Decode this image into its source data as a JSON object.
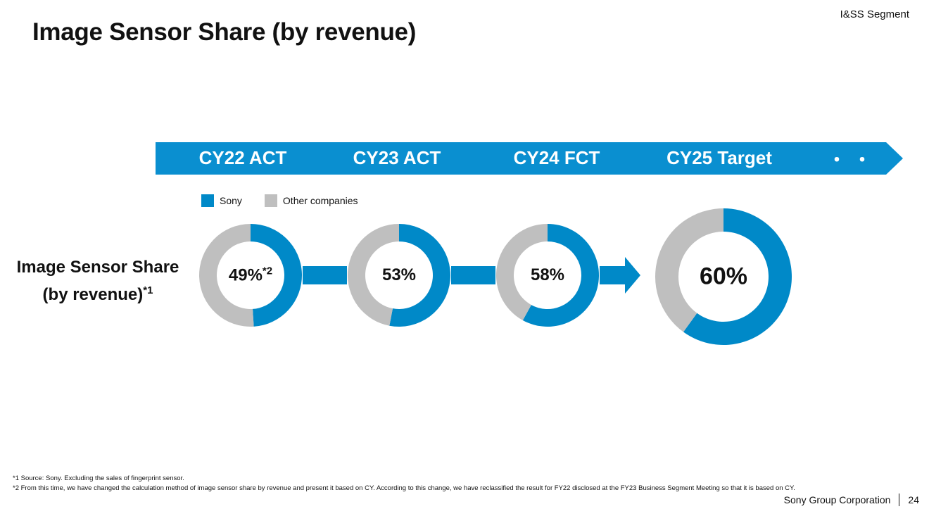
{
  "header": {
    "segment": "I&SS Segment",
    "title": "Image Sensor Share (by revenue)"
  },
  "timeline": {
    "labels": [
      "CY22 ACT",
      "CY23 ACT",
      "CY24 FCT",
      "CY25 Target"
    ],
    "trailing": "・・"
  },
  "colors": {
    "sony": "#0089c8",
    "other": "#bfbfbf",
    "banner": "#0a8fd0"
  },
  "chart_data": {
    "type": "pie",
    "title": "Image Sensor Share (by revenue)",
    "legend": [
      "Sony",
      "Other companies"
    ],
    "row_label": {
      "line1": "Image Sensor Share",
      "line2": "(by revenue)",
      "note": "*1"
    },
    "categories": [
      "CY22 ACT",
      "CY23 ACT",
      "CY24 FCT",
      "CY25 Target"
    ],
    "series": [
      {
        "name": "Sony",
        "values": [
          49,
          53,
          58,
          60
        ]
      },
      {
        "name": "Other companies",
        "values": [
          51,
          47,
          42,
          40
        ]
      }
    ],
    "labels": [
      "49%",
      "53%",
      "58%",
      "60%"
    ],
    "label_notes": [
      "*2",
      "",
      "",
      ""
    ]
  },
  "footnotes": [
    "*1  Source: Sony. Excluding the sales of fingerprint sensor.",
    "*2  From this time, we have changed the calculation method of image sensor share by revenue and present it based on CY. According to this change, we have reclassified the result for FY22 disclosed at the FY23 Business Segment Meeting so that it is based on CY."
  ],
  "footer": {
    "company": "Sony Group Corporation",
    "page": "24"
  }
}
